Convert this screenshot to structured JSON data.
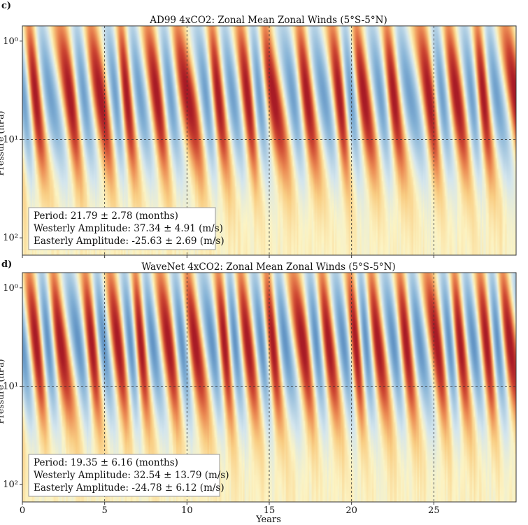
{
  "chart_data": [
    {
      "type": "heatmap",
      "panel_letter": "c)",
      "title": "AD99 4xCO2: Zonal Mean Zonal Winds (5°S-5°N)",
      "ylabel": "Pressure (hPa)",
      "xlabel": "",
      "y_scale": "log",
      "y_reversed": true,
      "xlim": [
        0,
        30
      ],
      "ylim": [
        0.7,
        150
      ],
      "x_ticks": [
        0,
        5,
        10,
        15,
        20,
        25
      ],
      "x_tick_labels": [],
      "y_ticks": [
        1,
        10,
        100
      ],
      "y_tick_labels": [
        "10⁰",
        "10¹",
        "10²"
      ],
      "grid": "dashed lines at x ticks and at 10 hPa",
      "colormap": "diverging blue (easterly) – yellow – red (westerly)",
      "colors": {
        "easterly": "#3b6fb6",
        "neutral": "#fbf3c2",
        "westerly": "#b2182b"
      },
      "stats": {
        "period": "Period: 21.79 ± 2.78 (months)",
        "westerly": "Westerly Amplitude: 37.34 ± 4.91 (m/s)",
        "easterly": "Easterly Amplitude: -25.63 ± 2.69 (m/s)"
      },
      "period_months": 21.79,
      "westerly_amplitude_ms": 37.34,
      "easterly_amplitude_ms": -25.63
    },
    {
      "type": "heatmap",
      "panel_letter": "d)",
      "title": "WaveNet 4xCO2: Zonal Mean Zonal Winds (5°S-5°N)",
      "ylabel": "Pressure (hPa)",
      "xlabel": "Years",
      "y_scale": "log",
      "y_reversed": true,
      "xlim": [
        0,
        30
      ],
      "ylim": [
        0.7,
        150
      ],
      "x_ticks": [
        0,
        5,
        10,
        15,
        20,
        25
      ],
      "x_tick_labels": [
        "0",
        "5",
        "10",
        "15",
        "20",
        "25"
      ],
      "y_ticks": [
        1,
        10,
        100
      ],
      "y_tick_labels": [
        "10⁰",
        "10¹",
        "10²"
      ],
      "grid": "dashed lines at x ticks and at 10 hPa",
      "colormap": "diverging blue (easterly) – yellow – red (westerly)",
      "colors": {
        "easterly": "#3b6fb6",
        "neutral": "#fbf3c2",
        "westerly": "#b2182b"
      },
      "stats": {
        "period": "Period: 19.35 ± 6.16 (months)",
        "westerly": "Westerly Amplitude: 32.54 ± 13.79 (m/s)",
        "easterly": "Easterly Amplitude: -24.78 ± 6.12 (m/s)"
      },
      "period_months": 19.35,
      "westerly_amplitude_ms": 32.54,
      "easterly_amplitude_ms": -24.78
    }
  ]
}
